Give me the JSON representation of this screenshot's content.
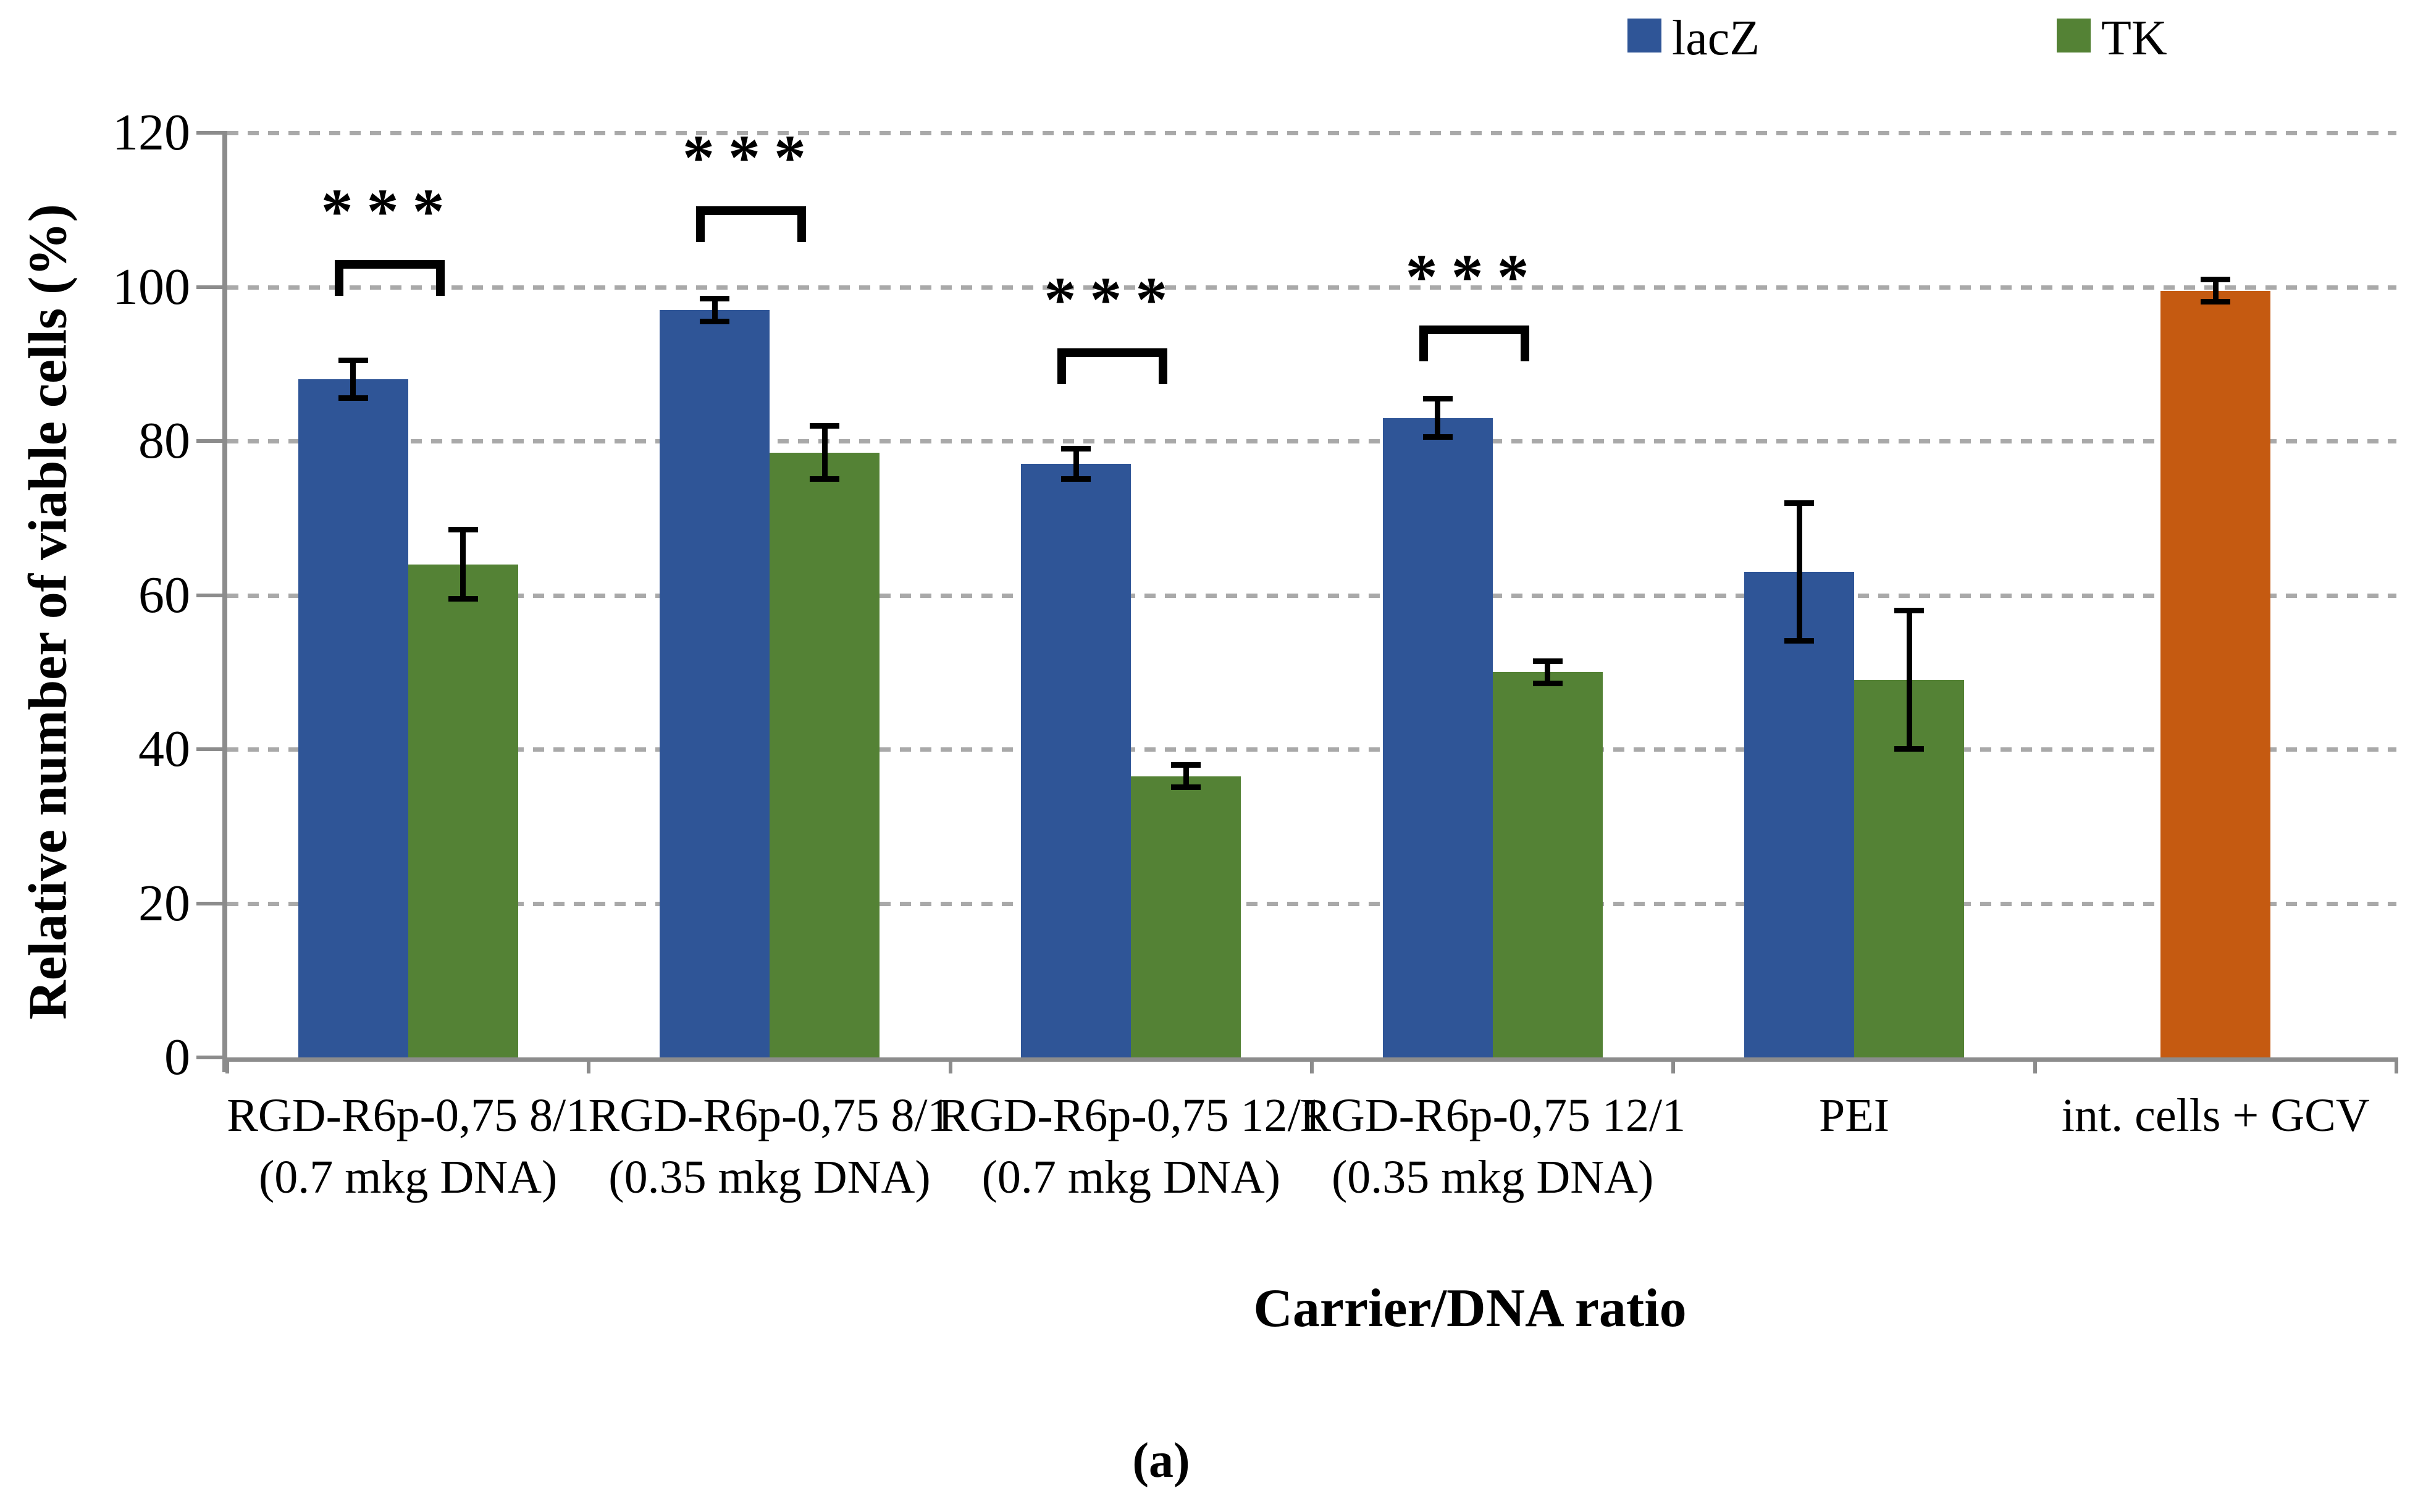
{
  "chart_data": {
    "type": "bar",
    "title": "",
    "xlabel": "Carrier/DNA ratio",
    "ylabel": "Relative number of viable cells (%)",
    "ylim": [
      0,
      120
    ],
    "yticks": [
      0,
      20,
      40,
      60,
      80,
      100,
      120
    ],
    "grid": "horizontal-dashed",
    "legend_position": "top-right",
    "categories": [
      {
        "line1": "RGD-R6p-0,75 8/1",
        "line2": "(0.7 mkg DNA)"
      },
      {
        "line1": "RGD-R6p-0,75 8/1",
        "line2": "(0.35 mkg DNA)"
      },
      {
        "line1": "RGD-R6p-0,75 12/1",
        "line2": "(0.7 mkg DNA)"
      },
      {
        "line1": "RGD-R6p-0,75 12/1",
        "line2": "(0.35 mkg DNA)"
      },
      {
        "line1": "PEI",
        "line2": ""
      },
      {
        "line1": "int. cells + GCV",
        "line2": ""
      }
    ],
    "series": [
      {
        "name": "lacZ",
        "color": "#2F5597",
        "values": [
          88,
          97,
          77,
          83,
          63,
          null
        ],
        "errors": [
          2.5,
          1.5,
          2,
          2.5,
          9,
          null
        ]
      },
      {
        "name": "TK",
        "color": "#548235",
        "values": [
          64,
          78.5,
          36.5,
          50,
          49,
          null
        ],
        "errors": [
          4.5,
          3.5,
          1.5,
          1.5,
          9,
          null
        ]
      }
    ],
    "control_bar": {
      "category_index": 5,
      "color": "#C55A11",
      "value": 99.5,
      "error": 1.5
    },
    "significance": [
      {
        "group": 0,
        "label": "***",
        "bracket_top": 103.5
      },
      {
        "group": 1,
        "label": "***",
        "bracket_top": 110.5
      },
      {
        "group": 2,
        "label": "***",
        "bracket_top": 92
      },
      {
        "group": 3,
        "label": "***",
        "bracket_top": 95
      }
    ]
  },
  "legend": {
    "items": [
      {
        "label": "lacZ",
        "color": "#2F5597"
      },
      {
        "label": "TK",
        "color": "#548235"
      }
    ]
  },
  "caption": {
    "text": "(a)"
  },
  "colors": {
    "grid": "#A9A9A9",
    "axis": "#8C8C8C",
    "error_bars": "#000000"
  }
}
